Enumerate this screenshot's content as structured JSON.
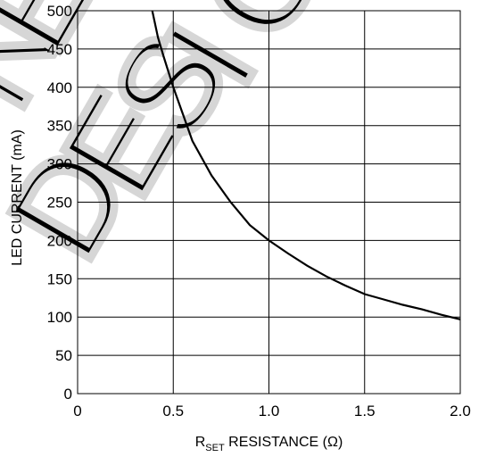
{
  "chart_data": {
    "type": "line",
    "title": "",
    "xlabel_main": "R",
    "xlabel_sub": "SET",
    "xlabel_rest": " RESISTANCE (Ω)",
    "ylabel": "LED CURRENT (mA)",
    "xlim": [
      0,
      2.0
    ],
    "ylim": [
      0,
      500
    ],
    "xticks": [
      0,
      0.5,
      1.0,
      1.5,
      2.0
    ],
    "xtick_labels": [
      "0",
      "0.5",
      "1.0",
      "1.5",
      "2.0"
    ],
    "yticks": [
      0,
      50,
      100,
      150,
      200,
      250,
      300,
      350,
      400,
      450,
      500
    ],
    "ytick_labels": [
      "0",
      "50",
      "100",
      "150",
      "200",
      "250",
      "300",
      "350",
      "400",
      "450",
      "500"
    ],
    "grid": true,
    "watermark": "NEW DESIGNS",
    "series": [
      {
        "color": "#000000",
        "x": [
          0.39,
          0.42,
          0.45,
          0.5,
          0.55,
          0.6,
          0.7,
          0.8,
          0.9,
          1.0,
          1.1,
          1.2,
          1.3,
          1.4,
          1.5,
          1.6,
          1.7,
          1.8,
          1.9,
          2.0
        ],
        "y": [
          500,
          465,
          440,
          400,
          365,
          330,
          285,
          250,
          220,
          200,
          183,
          167,
          153,
          141,
          130,
          123,
          116,
          110,
          103,
          97
        ]
      }
    ]
  }
}
